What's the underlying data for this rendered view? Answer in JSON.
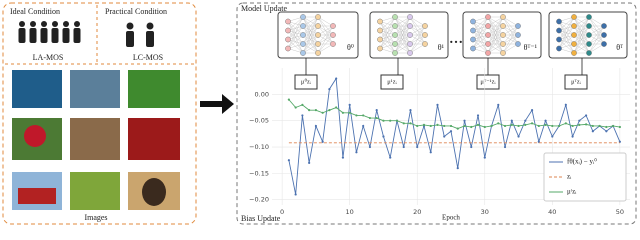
{
  "left_panel": {
    "ideal": "Ideal Condition",
    "practical": "Practical Condition",
    "la_mos": "LA-MOS",
    "lc_mos": "LC-MOS",
    "images": "Images"
  },
  "model_update": {
    "title": "Model Update",
    "thetas": [
      "θ⁰",
      "θ¹",
      "θᵀ⁻¹",
      "θᵀ"
    ],
    "mus": [
      "μ⁰zᵢ",
      "μ¹zᵢ",
      "μᵀ⁻¹zᵢ",
      "μᵀzᵢ"
    ]
  },
  "bias_update": "Bias Update",
  "chart_data": {
    "type": "line",
    "xlabel": "Epoch",
    "x": [
      1,
      2,
      3,
      4,
      5,
      6,
      7,
      8,
      9,
      10,
      11,
      12,
      13,
      14,
      15,
      16,
      17,
      18,
      19,
      20,
      21,
      22,
      23,
      24,
      25,
      26,
      27,
      28,
      29,
      30,
      31,
      32,
      33,
      34,
      35,
      36,
      37,
      38,
      39,
      40,
      41,
      42,
      43,
      44,
      45,
      46,
      47,
      48,
      49,
      50
    ],
    "series": [
      {
        "name": "fθ(xᵢ) − yᵢ⁰",
        "color": "#4c72b0",
        "marker": true,
        "values": [
          -0.125,
          -0.19,
          -0.04,
          -0.13,
          -0.06,
          -0.09,
          0.01,
          0.03,
          -0.12,
          -0.02,
          -0.11,
          -0.06,
          -0.1,
          -0.03,
          -0.08,
          -0.12,
          -0.05,
          -0.1,
          -0.03,
          -0.1,
          -0.06,
          -0.11,
          -0.02,
          -0.08,
          -0.07,
          -0.14,
          -0.05,
          -0.1,
          -0.04,
          -0.12,
          -0.06,
          -0.02,
          -0.1,
          -0.05,
          -0.08,
          -0.05,
          -0.03,
          -0.09,
          -0.05,
          -0.08,
          -0.06,
          -0.02,
          -0.08,
          -0.05,
          -0.04,
          -0.07,
          -0.06,
          -0.07,
          -0.06,
          -0.09
        ]
      },
      {
        "name": "zᵢ",
        "color": "#dd8452",
        "dashed": true,
        "x": [
          1,
          50
        ],
        "values": [
          -0.092,
          -0.092
        ]
      },
      {
        "name": "μᵗzᵢ",
        "color": "#55a868",
        "marker": true,
        "values": [
          -0.01,
          -0.025,
          -0.02,
          -0.03,
          -0.03,
          -0.035,
          -0.03,
          -0.025,
          -0.035,
          -0.035,
          -0.04,
          -0.04,
          -0.045,
          -0.045,
          -0.05,
          -0.05,
          -0.05,
          -0.055,
          -0.055,
          -0.06,
          -0.058,
          -0.06,
          -0.058,
          -0.06,
          -0.06,
          -0.065,
          -0.06,
          -0.062,
          -0.058,
          -0.062,
          -0.06,
          -0.055,
          -0.06,
          -0.058,
          -0.06,
          -0.058,
          -0.055,
          -0.06,
          -0.058,
          -0.06,
          -0.06,
          -0.055,
          -0.06,
          -0.058,
          -0.057,
          -0.06,
          -0.06,
          -0.062,
          -0.06,
          -0.062
        ]
      }
    ],
    "xlim": [
      -1.5,
      51.5
    ],
    "xticks": [
      0,
      10,
      20,
      30,
      40,
      50
    ],
    "ylim": [
      -0.21,
      0.05
    ],
    "yticks": [
      {
        "value": 0,
        "label": "0.00"
      },
      {
        "value": -0.05,
        "label": "−0.05"
      },
      {
        "value": -0.1,
        "label": "−0.10"
      },
      {
        "value": -0.15,
        "label": "−0.15"
      },
      {
        "value": -0.2,
        "label": "−0.20"
      }
    ],
    "grid": true,
    "legend": "lower right"
  }
}
